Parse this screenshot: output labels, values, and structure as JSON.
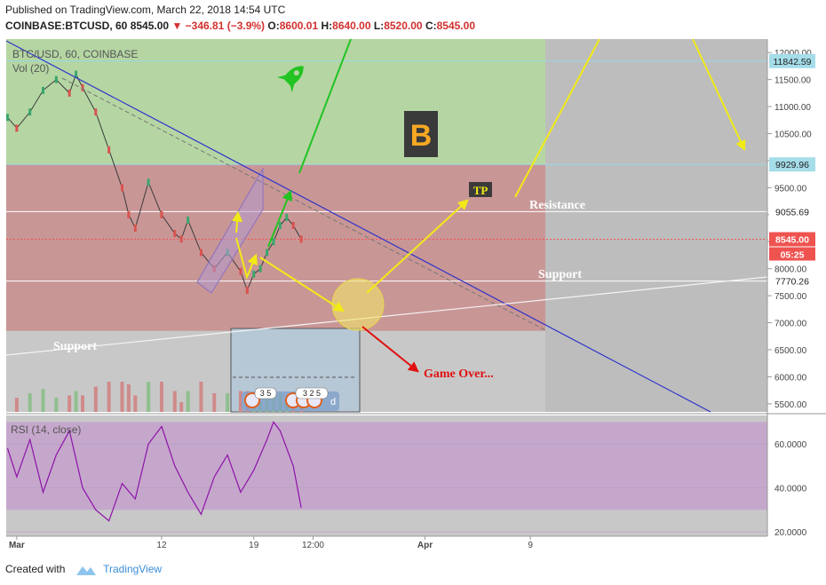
{
  "header": {
    "published": "Published on TradingView.com, March 22, 2018 14:54 UTC",
    "symbol": "COINBASE:BTCUSD, 60",
    "last": "8545.00",
    "change": "▼ −346.81 (−3.9%)",
    "o_label": "O:",
    "o": "8600.01",
    "h_label": "H:",
    "h": "8640.00",
    "l_label": "L:",
    "l": "8520.00",
    "c_label": "C:",
    "c": "8545.00"
  },
  "pane": {
    "title": "BTC/USD, 60, COINBASE",
    "volume_label": "Vol (20)",
    "rsi_label": "RSI (14, close)"
  },
  "annotations": {
    "support_left": "Support",
    "support_right": "Support",
    "resistance": "Resistance",
    "game_over": "Game Over...",
    "tp": "TP",
    "bitcoin_symbol": "B",
    "events_a": "3 5",
    "events_b": "3 2 5",
    "events_c": "d"
  },
  "colors": {
    "green_zone": "#b5d6a3",
    "red_zone": "#c99696",
    "rsi_band": "#c5a7cc",
    "trendline": "#2f35c9",
    "arrow_yellow": "#f2ea17",
    "arrow_green": "#22c322",
    "arrow_red": "#e01010",
    "rsi_line": "#8d12a8",
    "price_badge": "#ef5350"
  },
  "chart_data": {
    "type": "line",
    "symbol": "COINBASE:BTCUSD",
    "interval": "60",
    "price_axis_ticks": [
      5500,
      6000,
      6500,
      7000,
      7500,
      8000,
      8500,
      9000,
      9500,
      10000,
      10500,
      11000,
      11500,
      12000
    ],
    "price_axis_labels": [
      "5500.00",
      "6000.00",
      "6500.00",
      "7000.00",
      "7500.00",
      "8000.00",
      "8500.00",
      "9000.00",
      "9500.00",
      "10000.00",
      "10500.00",
      "11000.00",
      "11500.00",
      "12000.00"
    ],
    "ylim": [
      5350,
      12250
    ],
    "time_axis_labels": [
      "Mar",
      "12",
      "19",
      "12:00",
      "Apr",
      "9"
    ],
    "time_axis_days": [
      1,
      12,
      19,
      23.5,
      32,
      40
    ],
    "xlim_days": [
      0.2,
      58
    ],
    "levels": [
      {
        "label": "11842.59",
        "value": 11842.59
      },
      {
        "label": "9929.96",
        "value": 9929.96
      },
      {
        "label": "9055.69",
        "value": 9055.69
      },
      {
        "label": "8545.00",
        "value": 8545.0,
        "current": true
      },
      {
        "label": "7770.26",
        "value": 7770.26
      }
    ],
    "countdown": "05:25",
    "zones": [
      {
        "name": "green",
        "from": 9929.96,
        "to": 12250
      },
      {
        "name": "red",
        "from": 6850,
        "to": 9929.96
      }
    ],
    "price_series": {
      "x_days": [
        0.3,
        1,
        2,
        3,
        4,
        5,
        5.5,
        6,
        7,
        8,
        9,
        9.5,
        10,
        11,
        12,
        13,
        13.5,
        14,
        15,
        16,
        17,
        18,
        18.5,
        19,
        19.5,
        20,
        20.5,
        21,
        21.5,
        22,
        22.6
      ],
      "close": [
        10800,
        10600,
        10900,
        11300,
        11500,
        11250,
        11600,
        11350,
        10900,
        10200,
        9500,
        9000,
        8750,
        9600,
        9000,
        8650,
        8550,
        8900,
        8300,
        8000,
        8300,
        7950,
        7600,
        7900,
        8000,
        8300,
        8500,
        8800,
        8950,
        8800,
        8545
      ]
    },
    "rsi": {
      "ticks": [
        "20.0000",
        "40.0000",
        "60.0000"
      ],
      "tick_values": [
        20,
        40,
        60
      ],
      "band": [
        30,
        70
      ],
      "ylim": [
        18,
        73
      ],
      "x_days": [
        0.3,
        1,
        2,
        3,
        4,
        5,
        6,
        7,
        8,
        9,
        10,
        11,
        12,
        13,
        14,
        15,
        16,
        17,
        18,
        19,
        20,
        20.5,
        21,
        21.5,
        22,
        22.6
      ],
      "values": [
        58,
        45,
        62,
        38,
        55,
        66,
        40,
        30,
        25,
        42,
        35,
        60,
        68,
        50,
        38,
        28,
        45,
        55,
        38,
        48,
        62,
        70,
        66,
        58,
        50,
        31
      ]
    }
  }
}
